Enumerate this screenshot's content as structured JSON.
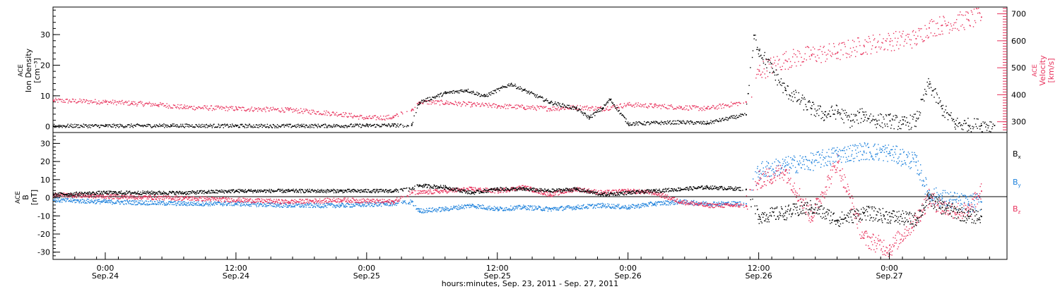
{
  "chart_data": [
    {
      "type": "scatter",
      "panel": "ion-density-velocity",
      "left_axis": {
        "label_lines": [
          "ACE",
          "Ion Density",
          "[cm⁻³]"
        ],
        "ylim": [
          -2,
          39
        ],
        "ticks": [
          0,
          10,
          20,
          30
        ]
      },
      "right_axis": {
        "label_lines": [
          "ACE",
          "Velocity",
          "[km/s]"
        ],
        "ylim": [
          260,
          725
        ],
        "ticks": [
          300,
          400,
          500,
          600,
          700
        ],
        "color": "#e8325c"
      },
      "series": [
        {
          "name": "Ion Density",
          "axis": "left",
          "color": "#000000",
          "x": [
            -0.2,
            0,
            0.25,
            0.5,
            0.75,
            1.0,
            1.1,
            1.17,
            1.2,
            1.3,
            1.38,
            1.45,
            1.55,
            1.6,
            1.7,
            1.8,
            1.85,
            1.9,
            1.93,
            2.0,
            2.2,
            2.3,
            2.45,
            2.48,
            2.5,
            2.6,
            2.7,
            2.75,
            2.8,
            2.85,
            2.9,
            2.95,
            3.0,
            3.05,
            3.1,
            3.15,
            3.2,
            3.25,
            3.3,
            3.35,
            3.4
          ],
          "y": [
            0.3,
            0.3,
            0.4,
            0.3,
            0.3,
            0.4,
            0.5,
            0.5,
            8,
            11,
            12,
            10,
            14,
            12,
            8,
            6,
            3,
            6,
            9,
            1,
            1.5,
            1.2,
            4,
            30,
            25,
            12,
            6,
            4,
            5,
            2,
            4,
            2,
            2,
            1,
            2,
            14,
            6,
            1,
            0.5,
            0.5,
            0.5
          ]
        },
        {
          "name": "Velocity",
          "axis": "right",
          "color": "#e8325c",
          "x": [
            -0.2,
            0,
            0.1,
            0.2,
            0.3,
            0.5,
            0.7,
            0.9,
            1.0,
            1.1,
            1.17,
            1.2,
            1.3,
            1.4,
            1.5,
            1.6,
            1.7,
            1.8,
            1.9,
            2.0,
            2.1,
            2.2,
            2.3,
            2.45,
            2.5,
            2.6,
            2.7,
            2.8,
            2.9,
            3.0,
            3.1,
            3.15,
            3.2,
            3.3,
            3.35
          ],
          "y": [
            380,
            375,
            370,
            365,
            355,
            350,
            345,
            330,
            315,
            318,
            345,
            375,
            372,
            365,
            360,
            355,
            350,
            355,
            350,
            365,
            360,
            355,
            350,
            375,
            490,
            530,
            550,
            560,
            585,
            600,
            610,
            650,
            660,
            680,
            690
          ]
        }
      ]
    },
    {
      "type": "scatter",
      "panel": "magnetic-field",
      "left_axis": {
        "label_lines": [
          "ACE",
          "B",
          "[nT]"
        ],
        "ylim": [
          -34,
          36
        ],
        "ticks": [
          -30,
          -20,
          -10,
          0,
          10,
          20,
          30
        ]
      },
      "series": [
        {
          "name": "Bx",
          "color": "#000000",
          "x": [
            -0.2,
            0,
            0.3,
            0.5,
            0.7,
            0.9,
            1.1,
            1.17,
            1.2,
            1.3,
            1.4,
            1.5,
            1.6,
            1.7,
            1.8,
            1.9,
            2.0,
            2.1,
            2.2,
            2.3,
            2.45,
            2.5,
            2.6,
            2.7,
            2.8,
            2.9,
            3.0,
            3.1,
            3.15,
            3.2,
            3.3,
            3.35
          ],
          "y": [
            2,
            3,
            3,
            4,
            4,
            4,
            4,
            5,
            7,
            6,
            3,
            5,
            5,
            4,
            5,
            2,
            3,
            4,
            5,
            6,
            5,
            -10,
            -8,
            -5,
            -12,
            -8,
            -10,
            -12,
            0,
            -5,
            -10,
            -10
          ]
        },
        {
          "name": "By",
          "color": "#1e82dc",
          "x": [
            -0.2,
            0,
            0.3,
            0.5,
            0.7,
            0.9,
            1.1,
            1.17,
            1.2,
            1.3,
            1.4,
            1.5,
            1.6,
            1.7,
            1.8,
            1.9,
            2.0,
            2.1,
            2.2,
            2.3,
            2.45,
            2.5,
            2.6,
            2.7,
            2.8,
            2.9,
            3.0,
            3.1,
            3.15,
            3.2,
            3.3,
            3.35
          ],
          "y": [
            -1,
            -2,
            -3,
            -3,
            -4,
            -4,
            -3,
            -2,
            -7,
            -6,
            -4,
            -6,
            -5,
            -6,
            -5,
            -4,
            -5,
            -3,
            -2,
            -3,
            -3,
            15,
            18,
            20,
            24,
            26,
            25,
            20,
            2,
            0,
            -3,
            -2
          ]
        },
        {
          "name": "Bz",
          "color": "#e8325c",
          "x": [
            -0.2,
            0,
            0.3,
            0.5,
            0.7,
            0.9,
            1.1,
            1.17,
            1.2,
            1.3,
            1.4,
            1.5,
            1.6,
            1.7,
            1.8,
            1.9,
            2.0,
            2.1,
            2.2,
            2.3,
            2.45,
            2.5,
            2.6,
            2.7,
            2.8,
            2.9,
            3.0,
            3.1,
            3.15,
            3.2,
            3.3,
            3.35
          ],
          "y": [
            2,
            1,
            0,
            -1,
            -2,
            -1,
            -2,
            3,
            3,
            4,
            5,
            4,
            6,
            2,
            5,
            3,
            4,
            3,
            -2,
            -4,
            -4,
            10,
            15,
            -10,
            20,
            -22,
            -28,
            -12,
            0,
            -5,
            -8,
            4
          ]
        }
      ],
      "legend": [
        "Bx",
        "By",
        "Bz"
      ]
    }
  ],
  "labels": {
    "density_label": [
      "ACE",
      "Ion Density",
      "[cm⁻³]"
    ],
    "velocity_label": [
      "ACE",
      "Velocity",
      "[km/s]"
    ],
    "b_label": [
      "ACE",
      "B",
      "[nT]"
    ],
    "legend": [
      {
        "main": "B",
        "sub": "x",
        "color": "#000000"
      },
      {
        "main": "B",
        "sub": "y",
        "color": "#1e82dc"
      },
      {
        "main": "B",
        "sub": "z",
        "color": "#e8325c"
      }
    ]
  },
  "x_axis": {
    "xlim": [
      -0.2,
      3.45
    ],
    "ticks": [
      {
        "x": 0,
        "time": "0:00",
        "date": "Sep.24"
      },
      {
        "x": 0.5,
        "time": "12:00",
        "date": "Sep.24"
      },
      {
        "x": 1.0,
        "time": "0:00",
        "date": "Sep.25"
      },
      {
        "x": 1.5,
        "time": "12:00",
        "date": "Sep.25"
      },
      {
        "x": 2.0,
        "time": "0:00",
        "date": "Sep.26"
      },
      {
        "x": 2.5,
        "time": "12:00",
        "date": "Sep.26"
      },
      {
        "x": 3.0,
        "time": "0:00",
        "date": "Sep.27"
      }
    ],
    "title": "hours:minutes, Sep. 23, 2011 - Sep. 27, 2011"
  }
}
